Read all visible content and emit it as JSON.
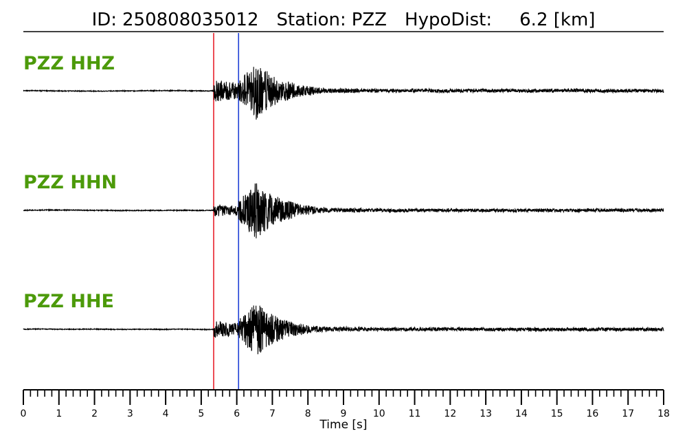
{
  "chart_data": {
    "type": "line",
    "title": {
      "id_label": "ID:",
      "id": "250808035012",
      "station_label": "Station:",
      "station": "PZZ",
      "dist_label": "HypoDist:",
      "dist": "6.2 [km]"
    },
    "xlabel": "Time [s]",
    "xlim": [
      0,
      18
    ],
    "major_ticks": [
      0,
      1,
      2,
      3,
      4,
      5,
      6,
      7,
      8,
      9,
      10,
      11,
      12,
      13,
      14,
      15,
      16,
      17,
      18
    ],
    "minor_tick_step": 0.2,
    "picks": [
      {
        "phase": "P",
        "time": 5.35,
        "color": "#e8202a"
      },
      {
        "phase": "S",
        "time": 6.05,
        "color": "#1f3fd6"
      }
    ],
    "label_color": "#4c9a0a",
    "trace_color": "#000000",
    "series": [
      {
        "name": "PZZ HHZ",
        "seed": 11,
        "pre_amp": 1,
        "p_amp": 17,
        "s_amp": 42,
        "coda_amp": 3.2
      },
      {
        "name": "PZZ HHN",
        "seed": 23,
        "pre_amp": 1,
        "p_amp": 9,
        "s_amp": 42,
        "coda_amp": 3
      },
      {
        "name": "PZZ HHE",
        "seed": 37,
        "pre_amp": 1,
        "p_amp": 13,
        "s_amp": 40,
        "coda_amp": 3.2
      }
    ]
  }
}
